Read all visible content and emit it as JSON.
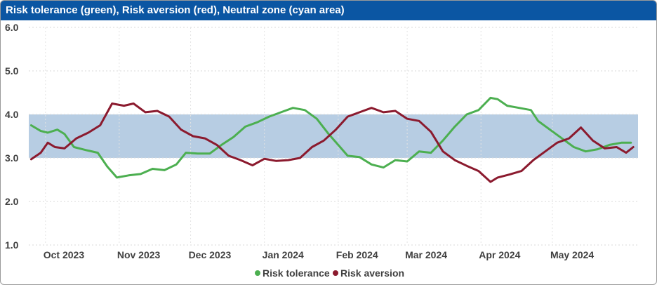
{
  "title": "Risk tolerance (green), Risk aversion (red), Neutral zone (cyan area)",
  "colors": {
    "header": "#0b56a3",
    "tolerance": "#4caf50",
    "aversion": "#8b1a2e",
    "band": "#b7cde3"
  },
  "chart_data": {
    "type": "line",
    "title": "Risk tolerance (green), Risk aversion (red), Neutral zone (cyan area)",
    "xlabel": "",
    "ylabel": "",
    "ylim": [
      1.0,
      6.0
    ],
    "yticks": [
      "1.0",
      "2.0",
      "3.0",
      "4.0",
      "5.0",
      "6.0"
    ],
    "xlim": [
      "2023-09-24",
      "2024-06-06"
    ],
    "xticks": [
      {
        "date": "2023-10-01",
        "label": "Oct 2023"
      },
      {
        "date": "2023-11-01",
        "label": "Nov 2023"
      },
      {
        "date": "2023-12-01",
        "label": "Dec 2023"
      },
      {
        "date": "2024-01-01",
        "label": "Jan 2024"
      },
      {
        "date": "2024-02-01",
        "label": "Feb 2024"
      },
      {
        "date": "2024-03-01",
        "label": "Mar 2024"
      },
      {
        "date": "2024-04-01",
        "label": "Apr 2024"
      },
      {
        "date": "2024-05-01",
        "label": "May 2024"
      }
    ],
    "neutral_zone": [
      3.0,
      4.0
    ],
    "grid": true,
    "legend": "bottom",
    "series": [
      {
        "name": "Risk tolerance",
        "color": "#4caf50",
        "points": [
          [
            "2023-09-25",
            3.75
          ],
          [
            "2023-09-29",
            3.62
          ],
          [
            "2023-10-02",
            3.58
          ],
          [
            "2023-10-06",
            3.65
          ],
          [
            "2023-10-09",
            3.55
          ],
          [
            "2023-10-13",
            3.25
          ],
          [
            "2023-10-18",
            3.18
          ],
          [
            "2023-10-23",
            3.12
          ],
          [
            "2023-10-27",
            2.8
          ],
          [
            "2023-10-31",
            2.55
          ],
          [
            "2023-11-05",
            2.6
          ],
          [
            "2023-11-10",
            2.63
          ],
          [
            "2023-11-15",
            2.75
          ],
          [
            "2023-11-20",
            2.72
          ],
          [
            "2023-11-25",
            2.85
          ],
          [
            "2023-11-29",
            3.12
          ],
          [
            "2023-12-04",
            3.1
          ],
          [
            "2023-12-09",
            3.1
          ],
          [
            "2023-12-14",
            3.3
          ],
          [
            "2023-12-19",
            3.48
          ],
          [
            "2023-12-24",
            3.72
          ],
          [
            "2023-12-29",
            3.82
          ],
          [
            "2024-01-03",
            3.95
          ],
          [
            "2024-01-08",
            4.05
          ],
          [
            "2024-01-13",
            4.15
          ],
          [
            "2024-01-18",
            4.1
          ],
          [
            "2024-01-23",
            3.9
          ],
          [
            "2024-01-28",
            3.55
          ],
          [
            "2024-02-01",
            3.3
          ],
          [
            "2024-02-05",
            3.05
          ],
          [
            "2024-02-10",
            3.02
          ],
          [
            "2024-02-15",
            2.85
          ],
          [
            "2024-02-20",
            2.78
          ],
          [
            "2024-02-25",
            2.95
          ],
          [
            "2024-03-01",
            2.92
          ],
          [
            "2024-03-06",
            3.15
          ],
          [
            "2024-03-11",
            3.12
          ],
          [
            "2024-03-16",
            3.4
          ],
          [
            "2024-03-21",
            3.72
          ],
          [
            "2024-03-26",
            4.0
          ],
          [
            "2024-03-31",
            4.1
          ],
          [
            "2024-04-05",
            4.38
          ],
          [
            "2024-04-08",
            4.35
          ],
          [
            "2024-04-12",
            4.2
          ],
          [
            "2024-04-17",
            4.15
          ],
          [
            "2024-04-22",
            4.1
          ],
          [
            "2024-04-25",
            3.85
          ],
          [
            "2024-04-30",
            3.65
          ],
          [
            "2024-05-05",
            3.45
          ],
          [
            "2024-05-10",
            3.25
          ],
          [
            "2024-05-15",
            3.15
          ],
          [
            "2024-05-20",
            3.2
          ],
          [
            "2024-05-25",
            3.3
          ],
          [
            "2024-05-30",
            3.35
          ],
          [
            "2024-06-03",
            3.35
          ]
        ]
      },
      {
        "name": "Risk aversion",
        "color": "#8b1a2e",
        "points": [
          [
            "2023-09-25",
            2.97
          ],
          [
            "2023-09-29",
            3.12
          ],
          [
            "2023-10-02",
            3.35
          ],
          [
            "2023-10-05",
            3.25
          ],
          [
            "2023-10-09",
            3.22
          ],
          [
            "2023-10-14",
            3.45
          ],
          [
            "2023-10-19",
            3.58
          ],
          [
            "2023-10-24",
            3.75
          ],
          [
            "2023-10-29",
            4.25
          ],
          [
            "2023-11-03",
            4.2
          ],
          [
            "2023-11-07",
            4.25
          ],
          [
            "2023-11-12",
            4.05
          ],
          [
            "2023-11-17",
            4.08
          ],
          [
            "2023-11-22",
            3.95
          ],
          [
            "2023-11-27",
            3.65
          ],
          [
            "2023-12-02",
            3.5
          ],
          [
            "2023-12-07",
            3.45
          ],
          [
            "2023-12-12",
            3.3
          ],
          [
            "2023-12-17",
            3.05
          ],
          [
            "2023-12-22",
            2.95
          ],
          [
            "2023-12-27",
            2.83
          ],
          [
            "2024-01-01",
            2.98
          ],
          [
            "2024-01-06",
            2.93
          ],
          [
            "2024-01-11",
            2.95
          ],
          [
            "2024-01-16",
            3.0
          ],
          [
            "2024-01-21",
            3.25
          ],
          [
            "2024-01-26",
            3.4
          ],
          [
            "2024-01-31",
            3.65
          ],
          [
            "2024-02-05",
            3.95
          ],
          [
            "2024-02-10",
            4.05
          ],
          [
            "2024-02-15",
            4.15
          ],
          [
            "2024-02-20",
            4.05
          ],
          [
            "2024-02-25",
            4.08
          ],
          [
            "2024-03-01",
            3.9
          ],
          [
            "2024-03-06",
            3.85
          ],
          [
            "2024-03-11",
            3.6
          ],
          [
            "2024-03-16",
            3.15
          ],
          [
            "2024-03-21",
            2.95
          ],
          [
            "2024-03-26",
            2.82
          ],
          [
            "2024-03-31",
            2.7
          ],
          [
            "2024-04-05",
            2.45
          ],
          [
            "2024-04-08",
            2.55
          ],
          [
            "2024-04-13",
            2.62
          ],
          [
            "2024-04-18",
            2.7
          ],
          [
            "2024-04-23",
            2.95
          ],
          [
            "2024-04-28",
            3.15
          ],
          [
            "2024-05-03",
            3.35
          ],
          [
            "2024-05-08",
            3.45
          ],
          [
            "2024-05-13",
            3.7
          ],
          [
            "2024-05-18",
            3.4
          ],
          [
            "2024-05-23",
            3.22
          ],
          [
            "2024-05-28",
            3.25
          ],
          [
            "2024-06-01",
            3.12
          ],
          [
            "2024-06-04",
            3.25
          ]
        ]
      }
    ]
  }
}
